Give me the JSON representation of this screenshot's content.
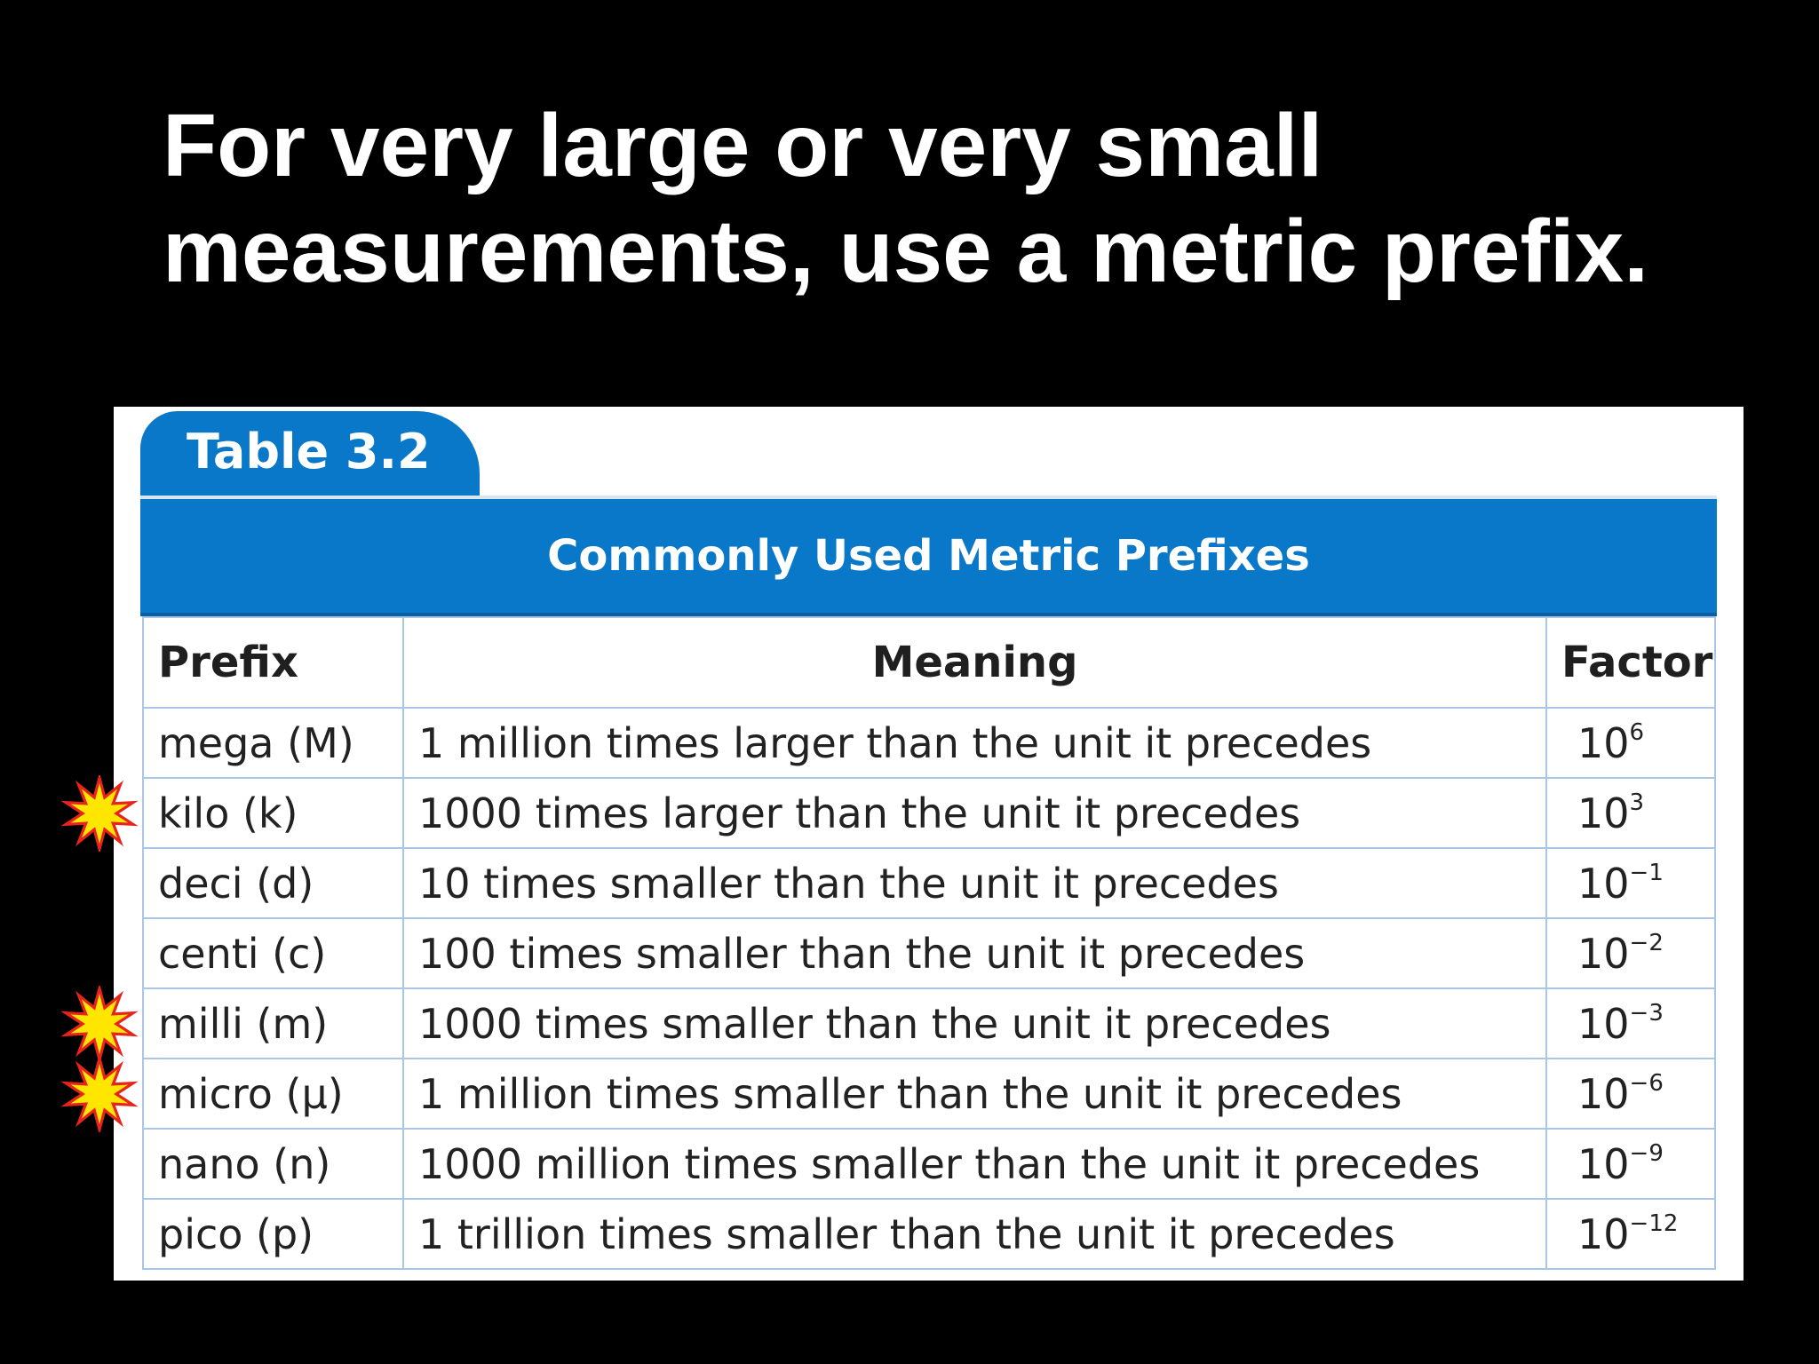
{
  "slide": {
    "title_line1": "For very large or very small",
    "title_line2": "measurements, use a metric prefix."
  },
  "table": {
    "tab_label": "Table 3.2",
    "banner_title": "Commonly Used Metric Prefixes",
    "headers": [
      "Prefix",
      "Meaning",
      "Factor"
    ],
    "rows": [
      {
        "prefix": "mega (M)",
        "meaning": "1 million times larger than the unit it precedes",
        "base": "10",
        "exponent": "6",
        "starred": false
      },
      {
        "prefix": "kilo (k)",
        "meaning": "1000 times larger than the unit it precedes",
        "base": "10",
        "exponent": "3",
        "starred": true
      },
      {
        "prefix": "deci (d)",
        "meaning": "10 times smaller than the unit it precedes",
        "base": "10",
        "exponent": "−1",
        "starred": false
      },
      {
        "prefix": "centi (c)",
        "meaning": "100 times smaller than the unit it precedes",
        "base": "10",
        "exponent": "−2",
        "starred": false
      },
      {
        "prefix": "milli (m)",
        "meaning": "1000 times smaller than the unit it precedes",
        "base": "10",
        "exponent": "−3",
        "starred": true
      },
      {
        "prefix": "micro (μ)",
        "meaning": "1 million times smaller than the unit it precedes",
        "base": "10",
        "exponent": "−6",
        "starred": true
      },
      {
        "prefix": "nano (n)",
        "meaning": "1000 million times smaller than the unit it precedes",
        "base": "10",
        "exponent": "−9",
        "starred": false
      },
      {
        "prefix": "pico (p)",
        "meaning": "1 trillion times smaller than the unit it precedes",
        "base": "10",
        "exponent": "−12",
        "starred": false
      }
    ]
  },
  "colors": {
    "background": "#000000",
    "title_text": "#ffffff",
    "table_accent": "#0a78c8",
    "grid_line": "#a9c6e4",
    "star_outer": "#e8231c",
    "star_inner": "#ffe600"
  },
  "icons": {
    "row_marker": "explosion-star-icon"
  }
}
